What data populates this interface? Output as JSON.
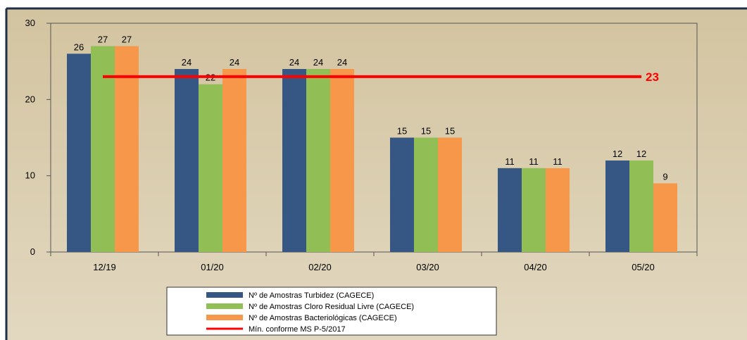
{
  "chart_data": {
    "type": "bar",
    "categories": [
      "12/19",
      "01/20",
      "02/20",
      "03/20",
      "04/20",
      "05/20"
    ],
    "series": [
      {
        "name": "Nº de Amostras Turbidez (CAGECE)",
        "values": [
          26,
          24,
          24,
          15,
          11,
          12
        ],
        "color": "#365783"
      },
      {
        "name": "Nº de Amostras Cloro Residual Livre (CAGECE)",
        "values": [
          27,
          22,
          24,
          15,
          11,
          12
        ],
        "color": "#92bf55"
      },
      {
        "name": "Nº de Amostras Bacteriológicas (CAGECE)",
        "values": [
          27,
          24,
          24,
          15,
          11,
          9
        ],
        "color": "#f7974a"
      }
    ],
    "reference_line": {
      "name": "Mín. conforme MS  P-5/2017",
      "value": 23,
      "label": "23",
      "color": "#ff0000"
    },
    "ylim": [
      0,
      30
    ],
    "yticks": [
      0,
      10,
      20,
      30
    ],
    "grid": false,
    "legend_position": "bottom-center",
    "background_color": "#d6c9a8",
    "plot_background_color": "#d6c9a8"
  }
}
